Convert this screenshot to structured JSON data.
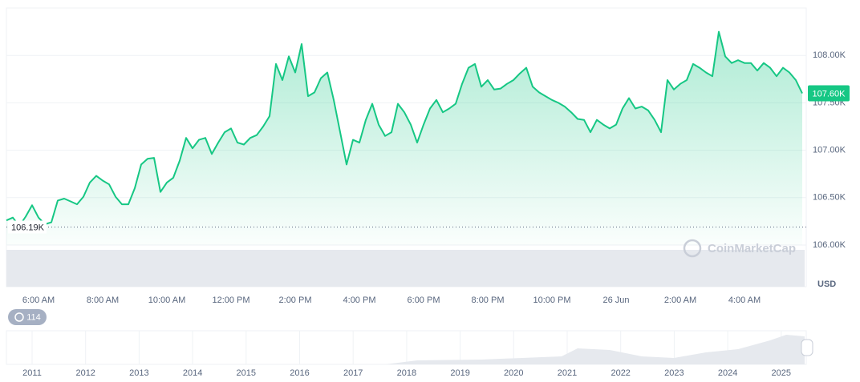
{
  "chart_data": {
    "type": "line",
    "color": "#16c784",
    "categories": [
      null,
      null,
      null,
      null,
      null,
      "6:00 AM",
      null,
      null,
      null,
      null,
      null,
      null,
      null,
      null,
      null,
      "8:00 AM",
      null,
      null,
      null,
      null,
      null,
      null,
      null,
      null,
      null,
      "10:00 AM",
      null,
      null,
      null,
      null,
      null,
      null,
      null,
      null,
      null,
      "12:00 PM",
      null,
      null,
      null,
      null,
      null,
      null,
      null,
      null,
      null,
      "2:00 PM",
      null,
      null,
      null,
      null,
      null,
      null,
      null,
      null,
      null,
      "4:00 PM",
      null,
      null,
      null,
      null,
      null,
      null,
      null,
      null,
      null,
      "6:00 PM",
      null,
      null,
      null,
      null,
      null,
      null,
      null,
      null,
      null,
      "8:00 PM",
      null,
      null,
      null,
      null,
      null,
      null,
      null,
      null,
      null,
      "10:00 PM",
      null,
      null,
      null,
      null,
      null,
      null,
      null,
      null,
      null,
      "26 Jun",
      null,
      null,
      null,
      null,
      null,
      null,
      null,
      null,
      null,
      "2:00 AM",
      null,
      null,
      null,
      null,
      null,
      null,
      null,
      null,
      null,
      "4:00 AM",
      null,
      null,
      null,
      null,
      null,
      null,
      null,
      null,
      null
    ],
    "values": [
      106260,
      106290,
      106200,
      106300,
      106420,
      106290,
      106220,
      106240,
      106470,
      106490,
      106460,
      106430,
      106510,
      106660,
      106730,
      106680,
      106640,
      106510,
      106430,
      106430,
      106600,
      106850,
      106910,
      106920,
      106560,
      106660,
      106710,
      106890,
      107130,
      107020,
      107110,
      107130,
      106960,
      107080,
      107190,
      107230,
      107080,
      107060,
      107130,
      107160,
      107250,
      107360,
      107910,
      107740,
      107990,
      107820,
      108120,
      107570,
      107610,
      107760,
      107820,
      107530,
      107190,
      106850,
      107110,
      107080,
      107320,
      107490,
      107270,
      107150,
      107190,
      107490,
      107400,
      107270,
      107080,
      107270,
      107440,
      107530,
      107400,
      107440,
      107490,
      107700,
      107870,
      107910,
      107670,
      107740,
      107640,
      107650,
      107700,
      107740,
      107810,
      107870,
      107670,
      107610,
      107570,
      107530,
      107500,
      107460,
      107400,
      107330,
      107320,
      107190,
      107320,
      107270,
      107230,
      107270,
      107440,
      107550,
      107440,
      107460,
      107420,
      107320,
      107190,
      107740,
      107640,
      107700,
      107740,
      107910,
      107870,
      107820,
      107780,
      108250,
      107990,
      107920,
      107950,
      107920,
      107920,
      107840,
      107920,
      107870,
      107780,
      107870,
      107820,
      107740,
      107600
    ],
    "ylim": [
      106000,
      108500
    ],
    "yticks": [
      {
        "value": 106000,
        "label": "106.00K"
      },
      {
        "value": 106500,
        "label": "106.50K"
      },
      {
        "value": 107000,
        "label": "107.00K"
      },
      {
        "value": 107500,
        "label": "107.50K"
      },
      {
        "value": 108000,
        "label": "108.00K"
      }
    ],
    "grid": true,
    "reference_line": {
      "value": 106190,
      "label": "106.19K"
    },
    "current_price": {
      "value": 107600,
      "label": "107.60K"
    },
    "y_unit": "USD"
  },
  "watermark": "CoinMarketCap",
  "badge": "114",
  "navigator": {
    "years": [
      "2011",
      "2012",
      "2013",
      "2014",
      "2015",
      "2016",
      "2017",
      "2018",
      "2019",
      "2020",
      "2021",
      "2022",
      "2023",
      "2024",
      "2025"
    ]
  }
}
